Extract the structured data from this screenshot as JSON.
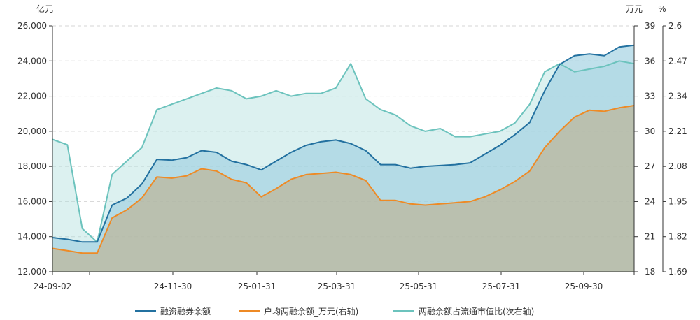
{
  "chart_data": {
    "type": "area",
    "left_unit": "亿元",
    "right_unit": "万元",
    "right2_unit": "%",
    "x_tick_labels": [
      "24-09-02",
      "24-11-30",
      "25-01-31",
      "25-03-31",
      "25-05-31",
      "25-07-31",
      "25-09-30"
    ],
    "y_left": {
      "min": 12000,
      "max": 26000,
      "ticks": [
        "12,000",
        "14,000",
        "16,000",
        "18,000",
        "20,000",
        "22,000",
        "24,000",
        "26,000"
      ]
    },
    "y_right": {
      "min": 18,
      "max": 39,
      "ticks": [
        "18",
        "21",
        "24",
        "27",
        "30",
        "33",
        "36",
        "39"
      ]
    },
    "y_right2": {
      "min": 1.69,
      "max": 2.6,
      "ticks": [
        "1.69",
        "1.82",
        "1.95",
        "2.08",
        "2.21",
        "2.34",
        "2.47",
        "2.6"
      ]
    },
    "grid": "horizontal-dashed",
    "legend_position": "bottom",
    "x": [
      "24-09-02",
      "24-09-15",
      "24-09-24",
      "24-09-27",
      "24-10-08",
      "24-10-15",
      "24-10-25",
      "24-11-05",
      "24-11-12",
      "24-11-20",
      "24-11-30",
      "24-12-10",
      "24-12-20",
      "24-12-31",
      "25-01-10",
      "25-01-20",
      "25-01-31",
      "25-02-10",
      "25-02-20",
      "25-03-01",
      "25-03-10",
      "25-03-20",
      "25-03-31",
      "25-04-08",
      "25-04-20",
      "25-05-01",
      "25-05-15",
      "25-05-31",
      "25-06-15",
      "25-07-01",
      "25-07-15",
      "25-07-31",
      "25-08-10",
      "25-08-20",
      "25-08-31",
      "25-09-10",
      "25-09-20",
      "25-09-30",
      "25-10-10",
      "25-10-17"
    ],
    "series": [
      {
        "name": "融资融券余额",
        "axis": "left",
        "color": "#2371a0",
        "values": [
          13950,
          13850,
          13700,
          13700,
          15800,
          16200,
          17000,
          18400,
          18350,
          18500,
          18900,
          18800,
          18300,
          18100,
          17800,
          18300,
          18800,
          19200,
          19400,
          19500,
          19300,
          18900,
          18100,
          18100,
          17900,
          18000,
          18050,
          18100,
          18200,
          18700,
          19200,
          19800,
          20500,
          22300,
          23800,
          24300,
          24400,
          24300,
          24800,
          24900
        ]
      },
      {
        "name": "户均两融余额_万元(右轴)",
        "axis": "right",
        "color": "#ee8a25",
        "values": [
          20.0,
          19.8,
          19.6,
          19.6,
          22.6,
          23.3,
          24.3,
          26.1,
          26.0,
          26.2,
          26.8,
          26.6,
          25.9,
          25.6,
          24.4,
          25.1,
          25.9,
          26.3,
          26.4,
          26.5,
          26.3,
          25.8,
          24.1,
          24.1,
          23.8,
          23.7,
          23.8,
          23.9,
          24.0,
          24.4,
          25.0,
          25.7,
          26.6,
          28.6,
          30.0,
          31.2,
          31.8,
          31.7,
          32.0,
          32.2
        ]
      },
      {
        "name": "两融余额占流通市值比(次右轴)",
        "axis": "right2",
        "color": "#6cc3bd",
        "values": [
          2.18,
          2.16,
          1.85,
          1.8,
          2.05,
          2.1,
          2.15,
          2.29,
          2.31,
          2.33,
          2.35,
          2.37,
          2.36,
          2.33,
          2.34,
          2.36,
          2.34,
          2.35,
          2.35,
          2.37,
          2.46,
          2.33,
          2.29,
          2.27,
          2.23,
          2.21,
          2.22,
          2.19,
          2.19,
          2.2,
          2.21,
          2.24,
          2.31,
          2.43,
          2.46,
          2.43,
          2.44,
          2.45,
          2.47,
          2.46
        ]
      }
    ]
  }
}
